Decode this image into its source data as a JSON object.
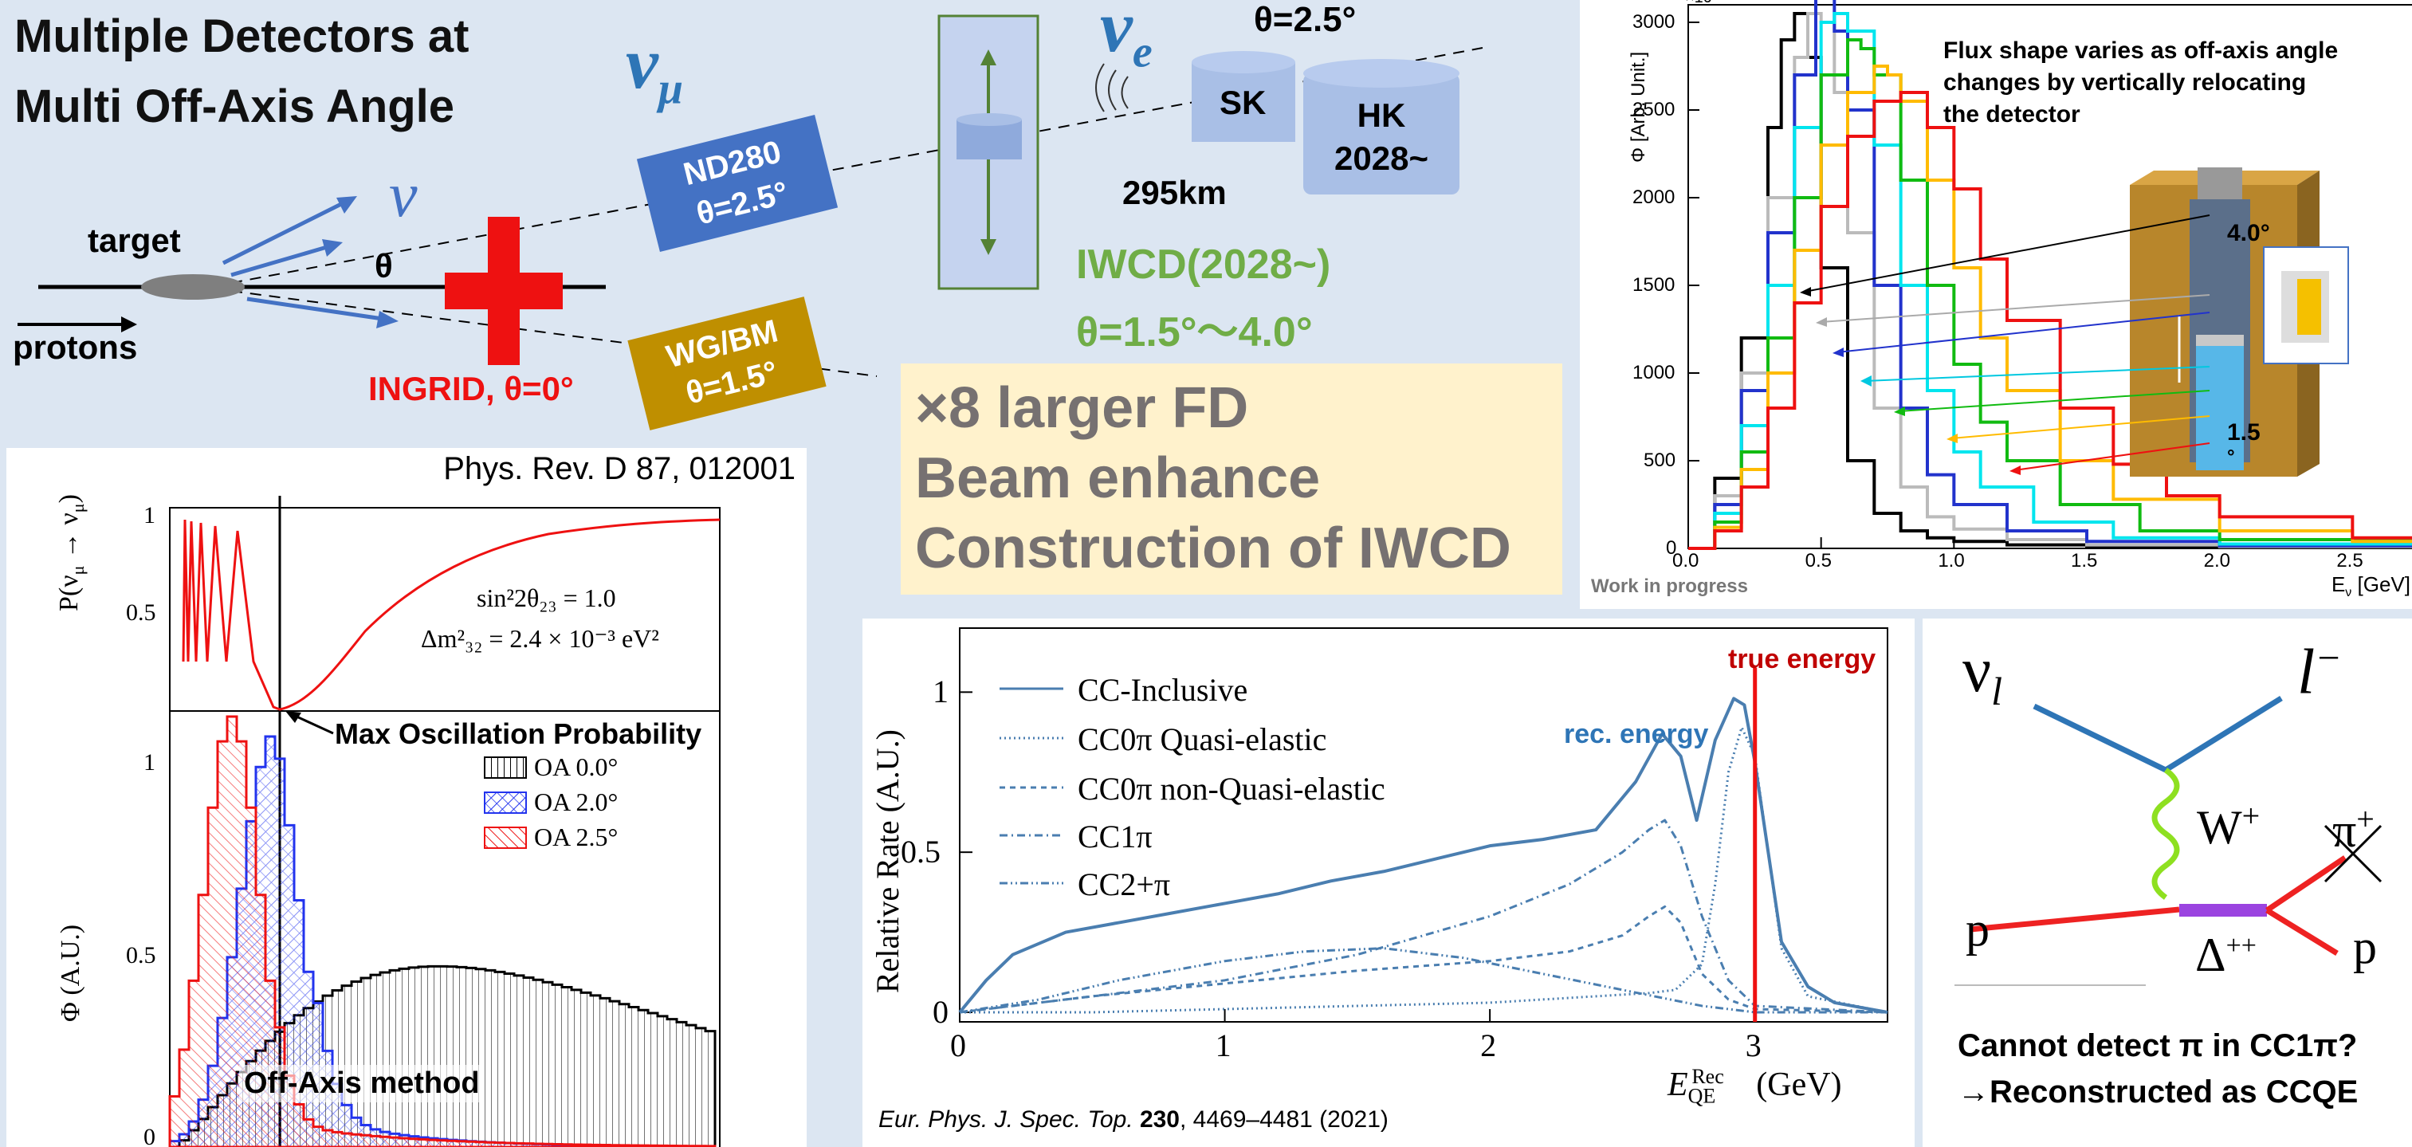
{
  "slide": {
    "title_line1": "Multiple Detectors at",
    "title_line2": "Multi Off-Axis Angle"
  },
  "beamline": {
    "target": "target",
    "protons": "protons",
    "nu": "ν",
    "theta": "θ",
    "nu_mu": "ν",
    "nu_mu_sub": "μ",
    "nu_e": "ν",
    "nu_e_sub": "e",
    "theta_top": "θ=2.5°",
    "nd280_l1": "ND280",
    "nd280_l2": "θ=2.5°",
    "wgbm_l1": "WG/BM",
    "wgbm_l2": "θ=1.5°",
    "ingrid": "INGRID, θ=0°",
    "sk": "SK",
    "hk_l1": "HK",
    "hk_l2": "2028~",
    "distance": "295km",
    "iwcd_l1": "IWCD(2028~)",
    "iwcd_l2": "θ=1.5°～4.0°"
  },
  "callout": {
    "line1": "×8 larger FD",
    "line2": "Beam enhance",
    "line3": "Construction of IWCD"
  },
  "osc_panel": {
    "citation": "Phys. Rev. D 87, 012001",
    "top_ylabel": "P(ν",
    "formula1": "sin²2θ₂₃ = 1.0",
    "formula2": "Δm²₃₂ = 2.4 × 10⁻³ eV²",
    "max_label": "Max Oscillation Probability",
    "offaxis_label": "Off-Axis method",
    "bottom_ylabel": "Φ (A.U.)",
    "top_ticks": [
      "1",
      "0.5"
    ],
    "bottom_ticks": [
      "1",
      "0.5",
      "0"
    ],
    "legend": [
      "OA 0.0°",
      "OA 2.0°",
      "OA 2.5°"
    ]
  },
  "flux_panel": {
    "note_l1": "Flux shape varies as off-axis angle",
    "note_l2": "changes by vertically relocating",
    "note_l3": "the detector",
    "ylabel": "Φ [Arb. Unit.]",
    "xlabel": "E",
    "xlabel_sub": "ν",
    "xlabel_unit": " [GeV]",
    "watermark": "Work in progress",
    "angle_top": "4.0°",
    "angle_bottom": "1.5",
    "angle_bottom2": "°",
    "y_exp": "×10"
  },
  "rate_panel": {
    "ylabel": "Relative Rate (A.U.)",
    "xlabel": "E",
    "xlabel_unit": "(GeV)",
    "true_energy": "true energy",
    "rec_energy": "rec. energy",
    "citation_pre": "Eur. Phys. J. Spec. Top. ",
    "citation_vol": "230",
    "citation_post": ", 4469–4481 (2021)",
    "legend": [
      "CC-Inclusive",
      "CC0π  Quasi-elastic",
      "CC0π  non-Quasi-elastic",
      "CC1π",
      "CC2+π"
    ],
    "x_ticks": [
      "0",
      "1",
      "2",
      "3"
    ],
    "y_ticks": [
      "0",
      "0.5",
      "1"
    ]
  },
  "feynman": {
    "nu_l": "ν",
    "nu_l_sub": "l",
    "lepton": "l",
    "lepton_sup": "−",
    "w": "W",
    "w_sup": "+",
    "pi": "π",
    "p_in": "p",
    "p_out": "p",
    "delta": "Δ",
    "delta_sup": "++",
    "caption_l1": "Cannot detect π in CC1π?",
    "caption_l2": "→Reconstructed as CCQE"
  },
  "chart_data": [
    {
      "type": "line",
      "title": "",
      "xlabel": "Eν [GeV]",
      "ylabel": "Φ [Arb. Unit.]",
      "xlim": [
        0,
        3.0
      ],
      "ylim": [
        0,
        3100
      ],
      "x_ticks": [
        "0.0",
        "0.5",
        "1.0",
        "1.5",
        "2.0",
        "2.5",
        "3.0"
      ],
      "y_ticks": [
        "0",
        "500",
        "1000",
        "1500",
        "2000",
        "2500",
        "3000"
      ],
      "series": [
        {
          "color": "#000000",
          "x": [
            0.0,
            0.1,
            0.2,
            0.3,
            0.35,
            0.4,
            0.45,
            0.5,
            0.6,
            0.7,
            0.8,
            0.9,
            1.0,
            1.2,
            1.5,
            2.0,
            3.0
          ],
          "y": [
            0,
            400,
            1200,
            2400,
            2900,
            3050,
            2800,
            1600,
            500,
            200,
            100,
            60,
            40,
            20,
            10,
            5,
            0
          ]
        },
        {
          "color": "#bbbbbb",
          "x": [
            0.0,
            0.1,
            0.2,
            0.3,
            0.4,
            0.45,
            0.5,
            0.55,
            0.6,
            0.7,
            0.8,
            0.9,
            1.0,
            1.2,
            1.5,
            2.0,
            3.0
          ],
          "y": [
            0,
            300,
            1000,
            2000,
            2800,
            3050,
            3000,
            2600,
            1800,
            800,
            350,
            180,
            110,
            50,
            20,
            10,
            0
          ]
        },
        {
          "color": "#2233cc",
          "x": [
            0.0,
            0.1,
            0.2,
            0.3,
            0.4,
            0.48,
            0.55,
            0.6,
            0.7,
            0.8,
            0.9,
            1.0,
            1.2,
            1.5,
            2.0,
            3.0
          ],
          "y": [
            0,
            250,
            900,
            1800,
            2700,
            3150,
            2950,
            2500,
            1500,
            800,
            420,
            250,
            100,
            40,
            15,
            0
          ]
        },
        {
          "color": "#00e5ee",
          "x": [
            0.0,
            0.1,
            0.2,
            0.3,
            0.4,
            0.5,
            0.55,
            0.6,
            0.7,
            0.8,
            0.9,
            1.0,
            1.1,
            1.3,
            1.6,
            2.0,
            3.0
          ],
          "y": [
            0,
            200,
            700,
            1500,
            2400,
            3000,
            3050,
            2950,
            2300,
            1500,
            900,
            550,
            350,
            150,
            60,
            25,
            0
          ]
        },
        {
          "color": "#11bb11",
          "x": [
            0.0,
            0.1,
            0.2,
            0.3,
            0.4,
            0.5,
            0.6,
            0.65,
            0.7,
            0.8,
            0.9,
            1.0,
            1.1,
            1.2,
            1.4,
            1.7,
            2.0,
            3.0
          ],
          "y": [
            0,
            150,
            550,
            1200,
            2000,
            2700,
            2900,
            2850,
            2700,
            2100,
            1500,
            1050,
            720,
            500,
            250,
            100,
            50,
            0
          ]
        },
        {
          "color": "#ffbb00",
          "x": [
            0.0,
            0.1,
            0.2,
            0.3,
            0.4,
            0.5,
            0.6,
            0.7,
            0.75,
            0.8,
            0.9,
            1.0,
            1.1,
            1.2,
            1.4,
            1.6,
            2.0,
            2.5,
            3.0
          ],
          "y": [
            0,
            120,
            450,
            1000,
            1700,
            2300,
            2600,
            2750,
            2700,
            2550,
            2100,
            1600,
            1200,
            900,
            500,
            280,
            100,
            40,
            0
          ]
        },
        {
          "color": "#ee1111",
          "x": [
            0.0,
            0.1,
            0.2,
            0.3,
            0.4,
            0.5,
            0.6,
            0.7,
            0.8,
            0.9,
            1.0,
            1.1,
            1.2,
            1.4,
            1.6,
            1.8,
            2.0,
            2.5,
            3.0
          ],
          "y": [
            0,
            100,
            350,
            800,
            1400,
            1950,
            2350,
            2550,
            2600,
            2400,
            2050,
            1650,
            1300,
            800,
            480,
            300,
            180,
            60,
            20
          ]
        }
      ]
    },
    {
      "type": "line",
      "title": "",
      "xlabel": "E_QE^Rec (GeV)",
      "ylabel": "Relative Rate (A.U.)",
      "xlim": [
        0,
        3.5
      ],
      "ylim": [
        0,
        1.2
      ],
      "x_ticks": [
        "0",
        "1",
        "2",
        "3"
      ],
      "y_ticks": [
        "0",
        "0.5",
        "1"
      ],
      "series": [
        {
          "name": "CC-Inclusive",
          "x": [
            0.0,
            0.1,
            0.2,
            0.4,
            0.6,
            0.8,
            1.0,
            1.2,
            1.4,
            1.6,
            1.8,
            2.0,
            2.2,
            2.4,
            2.55,
            2.65,
            2.72,
            2.78,
            2.85,
            2.92,
            2.96,
            3.0,
            3.05,
            3.1,
            3.2,
            3.3,
            3.5
          ],
          "y": [
            0.0,
            0.1,
            0.18,
            0.25,
            0.28,
            0.31,
            0.34,
            0.37,
            0.41,
            0.44,
            0.48,
            0.52,
            0.54,
            0.57,
            0.72,
            0.87,
            0.8,
            0.6,
            0.85,
            0.98,
            0.96,
            0.78,
            0.5,
            0.22,
            0.08,
            0.03,
            0.0
          ]
        },
        {
          "name": "CC0π  Quasi-elastic",
          "x": [
            0.0,
            0.5,
            1.0,
            1.5,
            2.0,
            2.4,
            2.6,
            2.7,
            2.8,
            2.85,
            2.9,
            2.95,
            3.0,
            3.05,
            3.1,
            3.2,
            3.5
          ],
          "y": [
            0.0,
            0.0,
            0.01,
            0.02,
            0.03,
            0.05,
            0.06,
            0.07,
            0.15,
            0.4,
            0.75,
            0.89,
            0.8,
            0.5,
            0.2,
            0.05,
            0.0
          ]
        },
        {
          "name": "CC0π  non-Quasi-elastic",
          "x": [
            0.0,
            0.2,
            0.5,
            1.0,
            1.5,
            2.0,
            2.3,
            2.5,
            2.6,
            2.66,
            2.72,
            2.8,
            2.9,
            3.0,
            3.5
          ],
          "y": [
            0.0,
            0.02,
            0.05,
            0.09,
            0.13,
            0.16,
            0.19,
            0.24,
            0.3,
            0.33,
            0.28,
            0.12,
            0.04,
            0.01,
            0.0
          ]
        },
        {
          "name": "CC1π",
          "x": [
            0.0,
            0.5,
            1.0,
            1.5,
            2.0,
            2.3,
            2.5,
            2.6,
            2.66,
            2.72,
            2.8,
            2.9,
            3.0,
            3.5
          ],
          "y": [
            0.0,
            0.05,
            0.1,
            0.18,
            0.3,
            0.4,
            0.5,
            0.57,
            0.6,
            0.52,
            0.3,
            0.1,
            0.02,
            0.0
          ]
        },
        {
          "name": "CC2+π",
          "x": [
            0.0,
            0.3,
            0.6,
            1.0,
            1.3,
            1.6,
            1.9,
            2.2,
            2.5,
            2.8,
            3.0,
            3.5
          ],
          "y": [
            0.0,
            0.04,
            0.1,
            0.16,
            0.19,
            0.2,
            0.17,
            0.12,
            0.07,
            0.02,
            0.0,
            0.0
          ]
        }
      ],
      "annotations": [
        "true energy",
        "rec. energy"
      ]
    }
  ]
}
